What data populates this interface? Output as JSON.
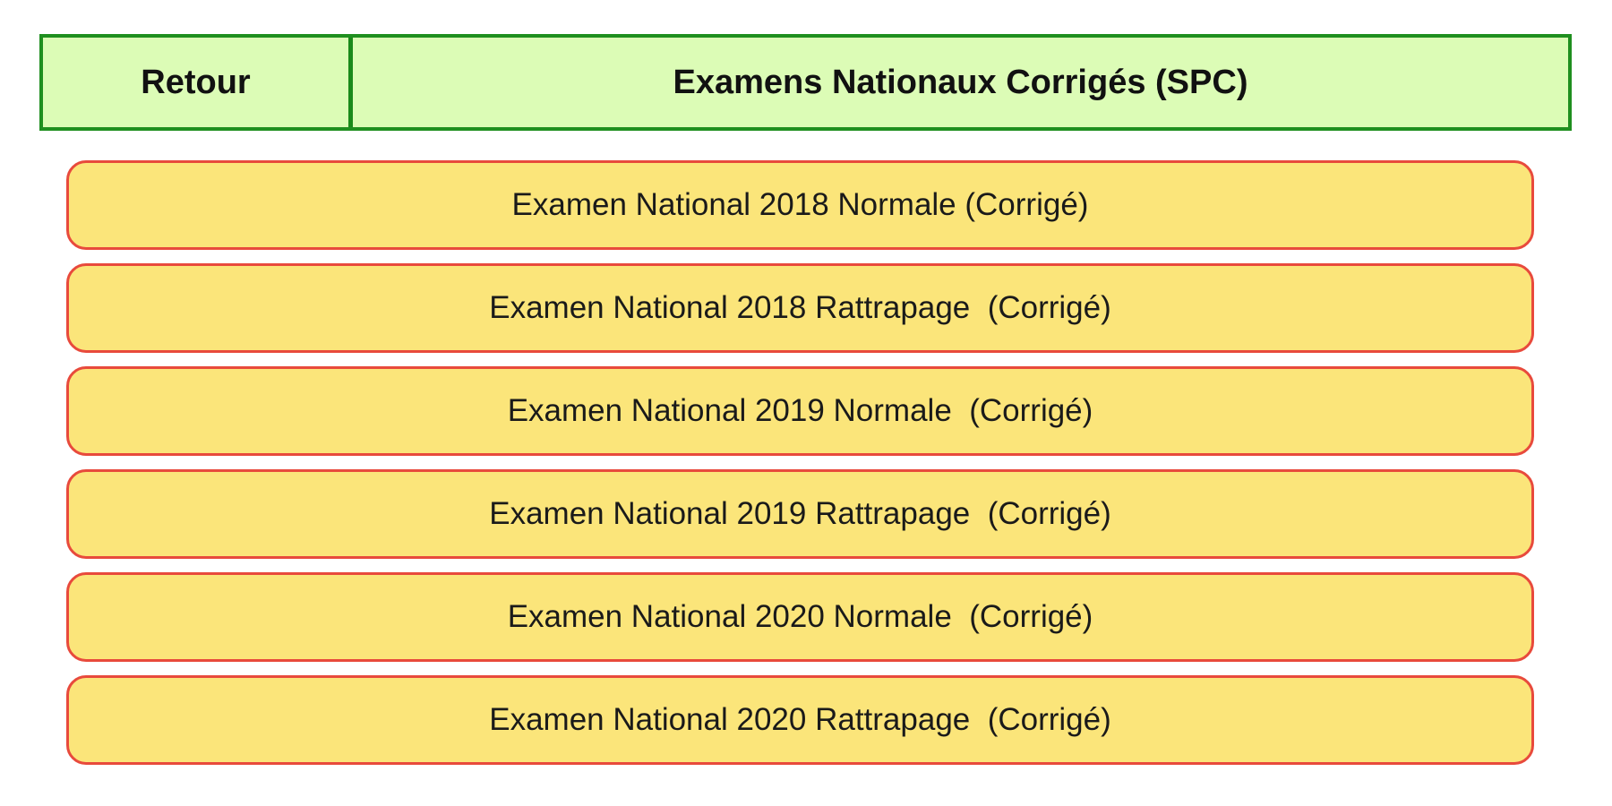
{
  "header": {
    "back_label": "Retour",
    "title": "Examens Nationaux Corrigés (SPC)"
  },
  "colors": {
    "header_bg": "#dcfcb6",
    "header_border": "#1f8f1f",
    "item_bg": "#fbe57a",
    "item_border": "#e84a3c"
  },
  "items": [
    {
      "label": "Examen National 2018 Normale (Corrigé)"
    },
    {
      "label": "Examen National 2018 Rattrapage  (Corrigé)"
    },
    {
      "label": "Examen National 2019 Normale  (Corrigé)"
    },
    {
      "label": "Examen National 2019 Rattrapage  (Corrigé)"
    },
    {
      "label": "Examen National 2020 Normale  (Corrigé)"
    },
    {
      "label": "Examen National 2020 Rattrapage  (Corrigé)"
    }
  ]
}
